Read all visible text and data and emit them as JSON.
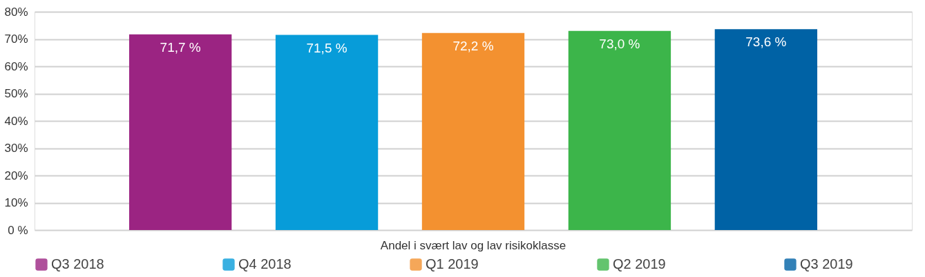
{
  "chart_data": {
    "type": "bar",
    "categories": [
      "Andel i svært lav og lav risikoklasse"
    ],
    "series": [
      {
        "name": "Q3 2018",
        "color": "#9b2482",
        "values": [
          71.7
        ],
        "value_labels": [
          "71,7 %"
        ]
      },
      {
        "name": "Q4 2018",
        "color": "#079cd9",
        "values": [
          71.5
        ],
        "value_labels": [
          "71,5 %"
        ]
      },
      {
        "name": "Q1 2019",
        "color": "#f39130",
        "values": [
          72.2
        ],
        "value_labels": [
          "72,2 %"
        ]
      },
      {
        "name": "Q2 2019",
        "color": "#3cb54a",
        "values": [
          73.0
        ],
        "value_labels": [
          "73,0 %"
        ]
      },
      {
        "name": "Q3 2019",
        "color": "#0062a5",
        "values": [
          73.6
        ],
        "value_labels": [
          "73,6 %"
        ]
      }
    ],
    "ylim": [
      0,
      80
    ],
    "yticks": [
      {
        "value": 0,
        "label": "0 %"
      },
      {
        "value": 10,
        "label": "10%"
      },
      {
        "value": 20,
        "label": "20%"
      },
      {
        "value": 30,
        "label": "30%"
      },
      {
        "value": 40,
        "label": "40%"
      },
      {
        "value": 50,
        "label": "50%"
      },
      {
        "value": 60,
        "label": "60%"
      },
      {
        "value": 70,
        "label": "70%"
      },
      {
        "value": 80,
        "label": "80%"
      }
    ],
    "grid": "y",
    "legend": "bottom"
  }
}
